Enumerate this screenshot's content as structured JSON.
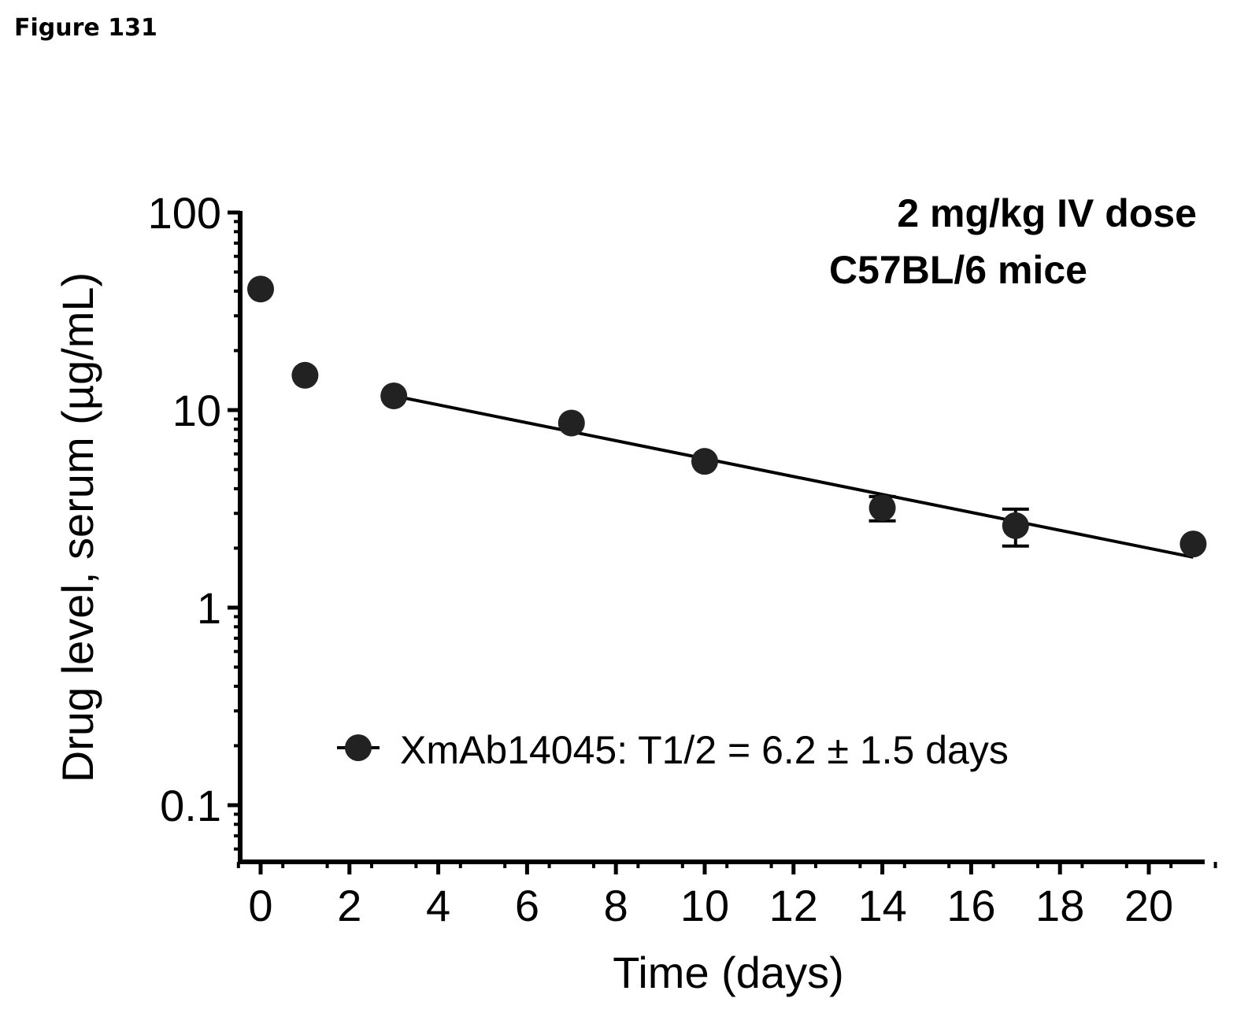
{
  "figure_label": "Figure 131",
  "chart_data": {
    "type": "scatter",
    "title_lines": [
      "2 mg/kg IV dose",
      "C57BL/6 mice"
    ],
    "xlabel": "Time (days)",
    "ylabel": "Drug level, serum (µg/mL)",
    "xlim": [
      -0.5,
      21.5
    ],
    "ylim": [
      0.05,
      100
    ],
    "yscale": "log",
    "xticks": [
      0,
      2,
      4,
      6,
      8,
      10,
      12,
      14,
      16,
      18,
      20
    ],
    "yticks": [
      {
        "value": 100,
        "label": "100"
      },
      {
        "value": 10,
        "label": "10"
      },
      {
        "value": 1,
        "label": "1"
      },
      {
        "value": 0.1,
        "label": "0.1"
      }
    ],
    "grid": false,
    "legend_position": "bottom-center",
    "series": [
      {
        "name": "XmAb14045: T1/2 = 6.2 ± 1.5 days",
        "color": "#222222",
        "x": [
          0,
          1,
          3,
          7,
          10,
          14,
          17,
          21
        ],
        "y": [
          41,
          15,
          11.8,
          8.6,
          5.5,
          3.2,
          2.6,
          2.1
        ],
        "error": [
          null,
          null,
          null,
          null,
          null,
          0.45,
          0.55,
          null
        ],
        "fit": {
          "x": [
            3,
            21
          ],
          "y": [
            11.8,
            1.8
          ]
        }
      }
    ]
  }
}
